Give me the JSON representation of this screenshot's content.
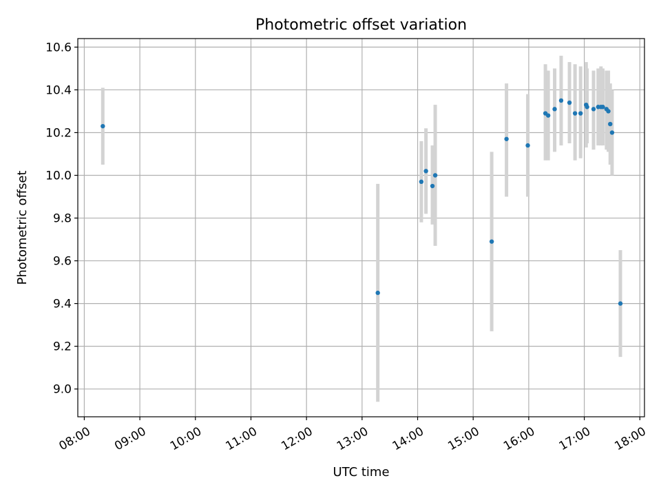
{
  "chart_data": {
    "type": "scatter",
    "title": "Photometric offset variation",
    "xlabel": "UTC time",
    "ylabel": "Photometric offset",
    "grid": true,
    "marker_color": "#1f77b4",
    "errorbar_color": "#d3d3d3",
    "x_ticks": [
      "08:00",
      "09:00",
      "10:00",
      "11:00",
      "12:00",
      "13:00",
      "14:00",
      "15:00",
      "16:00",
      "17:00",
      "18:00"
    ],
    "y_ticks": [
      "9.0",
      "9.2",
      "9.4",
      "9.6",
      "9.8",
      "10.0",
      "10.2",
      "10.4",
      "10.6"
    ],
    "xlim": [
      "07:53",
      "18:05"
    ],
    "ylim": [
      8.87,
      10.64
    ],
    "points": [
      {
        "t": "08:20",
        "y": 10.23,
        "lo": 10.05,
        "hi": 10.41
      },
      {
        "t": "13:17",
        "y": 9.45,
        "lo": 8.94,
        "hi": 9.96
      },
      {
        "t": "14:04",
        "y": 9.97,
        "lo": 9.78,
        "hi": 10.16
      },
      {
        "t": "14:09",
        "y": 10.02,
        "lo": 9.82,
        "hi": 10.22
      },
      {
        "t": "14:16",
        "y": 9.95,
        "lo": 9.77,
        "hi": 10.14
      },
      {
        "t": "14:19",
        "y": 10.0,
        "lo": 9.67,
        "hi": 10.33
      },
      {
        "t": "15:20",
        "y": 9.69,
        "lo": 9.27,
        "hi": 10.11
      },
      {
        "t": "15:36",
        "y": 10.17,
        "lo": 9.9,
        "hi": 10.43
      },
      {
        "t": "15:59",
        "y": 10.14,
        "lo": 9.9,
        "hi": 10.38
      },
      {
        "t": "16:18",
        "y": 10.29,
        "lo": 10.07,
        "hi": 10.52
      },
      {
        "t": "16:21",
        "y": 10.28,
        "lo": 10.07,
        "hi": 10.49
      },
      {
        "t": "16:28",
        "y": 10.31,
        "lo": 10.11,
        "hi": 10.5
      },
      {
        "t": "16:35",
        "y": 10.35,
        "lo": 10.14,
        "hi": 10.56
      },
      {
        "t": "16:44",
        "y": 10.34,
        "lo": 10.15,
        "hi": 10.53
      },
      {
        "t": "16:50",
        "y": 10.29,
        "lo": 10.07,
        "hi": 10.52
      },
      {
        "t": "16:56",
        "y": 10.29,
        "lo": 10.08,
        "hi": 10.51
      },
      {
        "t": "17:02",
        "y": 10.33,
        "lo": 10.13,
        "hi": 10.53
      },
      {
        "t": "17:03",
        "y": 10.32,
        "lo": 10.15,
        "hi": 10.5
      },
      {
        "t": "17:10",
        "y": 10.31,
        "lo": 10.12,
        "hi": 10.49
      },
      {
        "t": "17:15",
        "y": 10.32,
        "lo": 10.14,
        "hi": 10.5
      },
      {
        "t": "17:18",
        "y": 10.32,
        "lo": 10.14,
        "hi": 10.51
      },
      {
        "t": "17:20",
        "y": 10.32,
        "lo": 10.14,
        "hi": 10.5
      },
      {
        "t": "17:24",
        "y": 10.31,
        "lo": 10.12,
        "hi": 10.49
      },
      {
        "t": "17:26",
        "y": 10.3,
        "lo": 10.11,
        "hi": 10.49
      },
      {
        "t": "17:28",
        "y": 10.24,
        "lo": 10.05,
        "hi": 10.43
      },
      {
        "t": "17:30",
        "y": 10.2,
        "lo": 10.0,
        "hi": 10.4
      },
      {
        "t": "17:39",
        "y": 9.4,
        "lo": 9.15,
        "hi": 9.65
      }
    ]
  }
}
